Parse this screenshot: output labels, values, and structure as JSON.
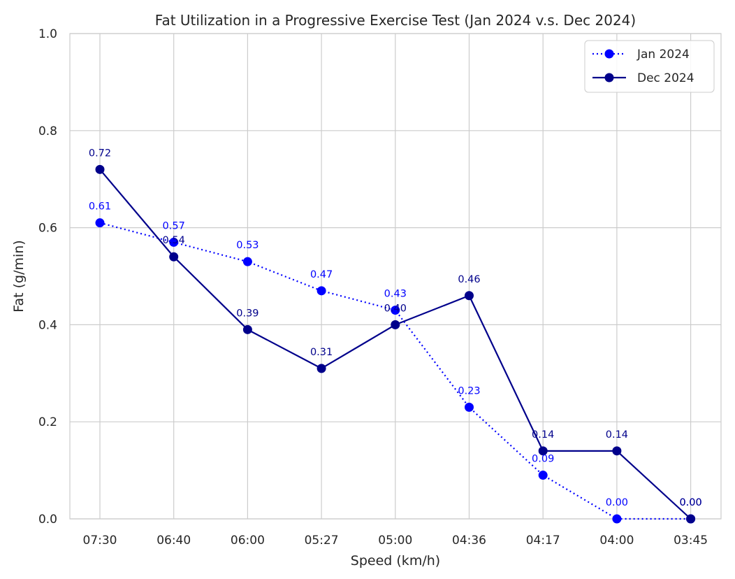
{
  "chart_data": {
    "type": "line",
    "title": "Fat Utilization in a Progressive Exercise Test (Jan 2024 v.s. Dec 2024)",
    "xlabel": "Speed (km/h)",
    "ylabel": "Fat (g/min)",
    "categories": [
      "07:30",
      "06:40",
      "06:00",
      "05:27",
      "05:00",
      "04:36",
      "04:17",
      "04:00",
      "03:45"
    ],
    "ylim": [
      0,
      1.0
    ],
    "yticks": [
      "0.0",
      "0.2",
      "0.4",
      "0.6",
      "0.8",
      "1.0"
    ],
    "grid": true,
    "legend_position": "top-right",
    "series": [
      {
        "name": "Jan 2024",
        "values": [
          0.61,
          0.57,
          0.53,
          0.47,
          0.43,
          0.23,
          0.09,
          0.0,
          0.0
        ],
        "labels": [
          "0.61",
          "0.57",
          "0.53",
          "0.47",
          "0.43",
          "0.23",
          "0.09",
          "0.00",
          "0.00"
        ],
        "color": "#0000ff",
        "line_style": "dotted"
      },
      {
        "name": "Dec 2024",
        "values": [
          0.72,
          0.54,
          0.39,
          0.31,
          0.4,
          0.46,
          0.14,
          0.14,
          0.0
        ],
        "labels": [
          "0.72",
          "0.54",
          "0.39",
          "0.31",
          "0.40",
          "0.46",
          "0.14",
          "0.14",
          "0.00"
        ],
        "color": "#00008b",
        "line_style": "solid"
      }
    ]
  }
}
